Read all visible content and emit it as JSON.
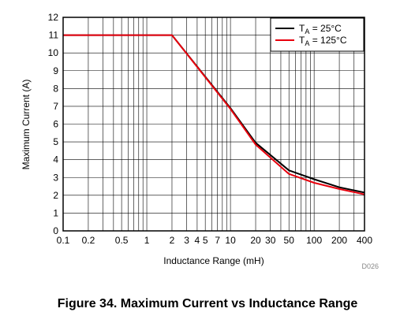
{
  "caption": "Figure 34. Maximum Current vs Inductance Range",
  "figure_id": "D026",
  "chart_data": {
    "type": "line",
    "title": "",
    "xlabel": "Inductance Range (mH)",
    "ylabel": "Maximum Current (A)",
    "xscale": "log",
    "xlim": [
      0.1,
      400
    ],
    "ylim": [
      0,
      12
    ],
    "x_ticks": [
      0.1,
      0.2,
      0.5,
      1,
      2,
      3,
      4,
      5,
      7,
      10,
      20,
      30,
      50,
      100,
      200,
      400
    ],
    "x_tick_labels": [
      "0.1",
      "0.2",
      "0.5",
      "1",
      "2",
      "3",
      "4",
      "5",
      "7",
      "10",
      "20",
      "30",
      "50",
      "100",
      "200",
      "400"
    ],
    "y_ticks": [
      0,
      1,
      2,
      3,
      4,
      5,
      6,
      7,
      8,
      9,
      10,
      11,
      12
    ],
    "y_tick_labels": [
      "0",
      "1",
      "2",
      "3",
      "4",
      "5",
      "6",
      "7",
      "8",
      "9",
      "10",
      "11",
      "12"
    ],
    "grid": true,
    "legend_position": "top-right",
    "series": [
      {
        "name": "TA = 25°C",
        "name_main": "T",
        "name_sub": "A",
        "name_rest": " = 25°C",
        "color": "#000000",
        "x": [
          0.1,
          2,
          10,
          20,
          50,
          100,
          200,
          400
        ],
        "y": [
          11,
          11,
          6.9,
          4.95,
          3.4,
          2.9,
          2.45,
          2.15
        ]
      },
      {
        "name": "TA = 125°C",
        "name_main": "T",
        "name_sub": "A",
        "name_rest": " = 125°C",
        "color": "#e8000d",
        "x": [
          0.1,
          2,
          10,
          20,
          50,
          100,
          200,
          400
        ],
        "y": [
          11,
          11,
          6.85,
          4.85,
          3.2,
          2.7,
          2.35,
          2.05
        ]
      }
    ]
  }
}
